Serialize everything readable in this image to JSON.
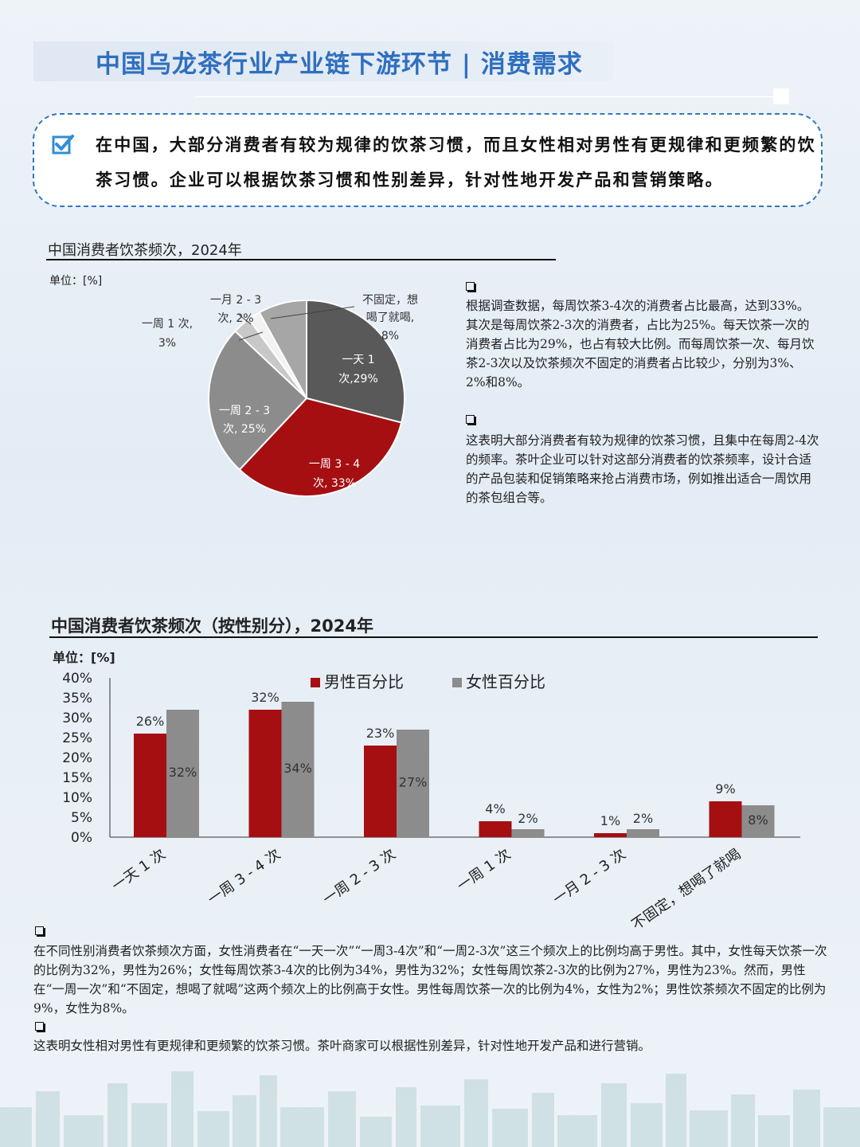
{
  "header": {
    "title": "中国乌龙茶行业产业链下游环节 | 消费需求"
  },
  "summary": {
    "text": "在中国，大部分消费者有较为规律的饮茶习惯，而且女性相对男性有更规律和更频繁的饮茶习惯。企业可以根据饮茶习惯和性别差异，针对性地开发产品和营销策略。",
    "icon": "checkbox-checked-icon"
  },
  "pie_section": {
    "title": "中国消费者饮茶频次，2024年",
    "unit": "单位：[%]",
    "labels": [
      {
        "line1": "一天 1",
        "line2": "次,29%"
      },
      {
        "line1": "一周 3 - 4",
        "line2": "次, 33%"
      },
      {
        "line1": "一周 2 - 3",
        "line2": "次, 25%"
      },
      {
        "line1": "一周 1 次,",
        "line2": "3%"
      },
      {
        "line1": "一月 2 - 3",
        "line2": "次, 2%"
      },
      {
        "line1": "不固定，想",
        "line2": "喝了就喝,",
        "line3": "8%"
      }
    ],
    "paragraphs": [
      "根据调查数据，每周饮茶3-4次的消费者占比最高，达到33%。其次是每周饮茶2-3次的消费者，占比为25%。每天饮茶一次的消费者占比为29%，也占有较大比例。而每周饮茶一次、每月饮茶2-3次以及饮茶频次不固定的消费者占比较少，分别为3%、2%和8%。",
      "这表明大部分消费者有较为规律的饮茶习惯，且集中在每周2-4次的频率。茶叶企业可以针对这部分消费者的饮茶频率，设计合适的产品包装和促销策略来抢占消费市场，例如推出适合一周饮用的茶包组合等。"
    ]
  },
  "bar_section": {
    "title": "中国消费者饮茶频次（按性别分），2024年",
    "unit": "单位：[%]",
    "paragraphs": [
      "在不同性别消费者饮茶频次方面，女性消费者在“一天一次”“一周3-4次”和“一周2-3次”这三个频次上的比例均高于男性。其中，女性每天饮茶一次的比例为32%，男性为26%；女性每周饮茶3-4次的比例为34%，男性为32%；女性每周饮茶2-3次的比例为27%，男性为23%。然而，男性在“一周一次”和“不固定，想喝了就喝”这两个频次上的比例高于女性。男性每周饮茶一次的比例为4%，女性为2%；男性饮茶频次不固定的比例为9%，女性为8%。",
      "这表明女性相对男性有更规律和更频繁的饮茶习惯。茶叶商家可以根据性别差异，针对性地开发产品和进行营销。"
    ]
  },
  "chart_data": [
    {
      "type": "pie",
      "title": "中国消费者饮茶频次，2024年",
      "unit": "%",
      "categories": [
        "一天1次",
        "一周3-4次",
        "一周2-3次",
        "一周1次",
        "一月2-3次",
        "不固定，想喝了就喝"
      ],
      "values": [
        29,
        33,
        25,
        3,
        2,
        8
      ],
      "colors": [
        "#595959",
        "#a50f12",
        "#8c8c8c",
        "#c8c8c8",
        "#f2f2f2",
        "#a6a6a6"
      ]
    },
    {
      "type": "bar",
      "title": "中国消费者饮茶频次（按性别分），2024年",
      "unit": "%",
      "categories": [
        "一天 1 次",
        "一周 3 - 4 次",
        "一周 2 - 3 次",
        "一周 1 次",
        "一月 2 - 3 次",
        "不固定，想喝了就喝"
      ],
      "series": [
        {
          "name": "男性百分比",
          "values": [
            26,
            32,
            23,
            4,
            1,
            9
          ],
          "color": "#a50f12",
          "labels": [
            "26%",
            "32%",
            "23%",
            "4%",
            "1%",
            "9%"
          ]
        },
        {
          "name": "女性百分比",
          "values": [
            32,
            34,
            27,
            2,
            2,
            8
          ],
          "color": "#8c8c8c",
          "labels": [
            "32%",
            "34%",
            "27%",
            "2%",
            "2%",
            "8%"
          ]
        }
      ],
      "yticks": [
        "0%",
        "5%",
        "10%",
        "15%",
        "20%",
        "25%",
        "30%",
        "35%",
        "40%"
      ],
      "ylim": [
        0,
        40
      ],
      "legend": "top"
    }
  ]
}
